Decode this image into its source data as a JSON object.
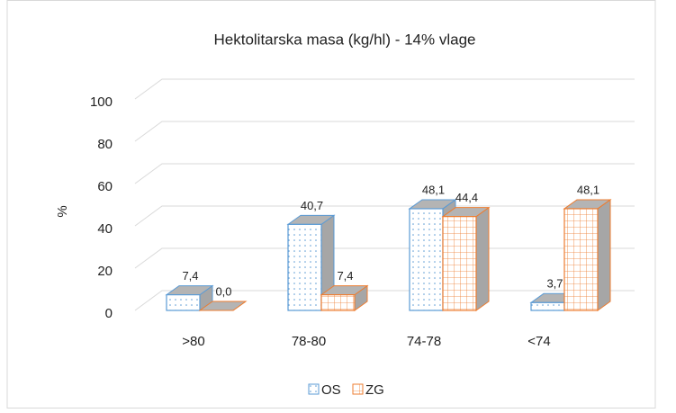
{
  "chart_data": {
    "type": "bar3d",
    "title": "Hektolitarska masa (kg/hl) - 14% vlage",
    "y_label": "%",
    "categories": [
      ">80",
      "78-80",
      "74-78",
      "<74"
    ],
    "series": [
      {
        "name": "OS",
        "color": "#5b9bd5",
        "values": [
          7.4,
          40.7,
          48.1,
          3.7
        ],
        "value_labels": [
          "7,4",
          "40,7",
          "48,1",
          "3,7"
        ]
      },
      {
        "name": "ZG",
        "color": "#ed7d31",
        "values": [
          0.0,
          7.4,
          44.4,
          48.1
        ],
        "value_labels": [
          "0,0",
          "7,4",
          "44,4",
          "48,1"
        ]
      }
    ],
    "ylim": [
      0,
      100
    ],
    "yticks": [
      0,
      20,
      40,
      60,
      80,
      100
    ],
    "grid": true,
    "legend": "bottom"
  }
}
